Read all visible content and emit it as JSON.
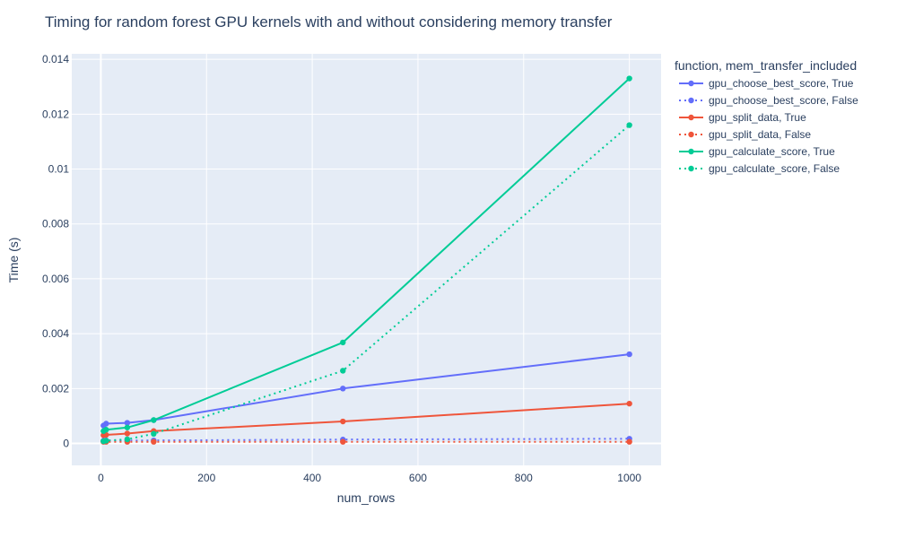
{
  "chart_data": {
    "type": "line",
    "title": "Timing for random forest GPU kernels with and without considering memory transfer",
    "xlabel": "num_rows",
    "ylabel": "Time (s)",
    "xlim": [
      -55,
      1060
    ],
    "ylim": [
      -0.0008,
      0.0142
    ],
    "x_ticks": [
      0,
      200,
      400,
      600,
      800,
      1000
    ],
    "x_tick_labels": [
      "0",
      "200",
      "400",
      "600",
      "800",
      "1000"
    ],
    "y_ticks": [
      0,
      0.002,
      0.004,
      0.006,
      0.008,
      0.01,
      0.012,
      0.014
    ],
    "y_tick_labels": [
      "0",
      "0.002",
      "0.004",
      "0.006",
      "0.008",
      "0.01",
      "0.012",
      "0.014"
    ],
    "grid": true,
    "legend_title": "function, mem_transfer_included",
    "legend_position": "right",
    "x": [
      5,
      10,
      50,
      100,
      458,
      1000
    ],
    "series": [
      {
        "name": "gpu_choose_best_score, True",
        "color": "#636efa",
        "dash": "solid",
        "values": [
          0.00065,
          0.00072,
          0.00075,
          0.00085,
          0.002,
          0.00325
        ]
      },
      {
        "name": "gpu_choose_best_score, False",
        "color": "#636efa",
        "dash": "dot",
        "values": [
          0.0001,
          0.00011,
          0.00011,
          0.00011,
          0.00014,
          0.00017
        ]
      },
      {
        "name": "gpu_split_data, True",
        "color": "#ef553b",
        "dash": "solid",
        "values": [
          0.0003,
          0.00031,
          0.00036,
          0.00045,
          0.0008,
          0.00145
        ]
      },
      {
        "name": "gpu_split_data, False",
        "color": "#ef553b",
        "dash": "dot",
        "values": [
          6e-05,
          6e-05,
          6e-05,
          6e-05,
          6e-05,
          6e-05
        ]
      },
      {
        "name": "gpu_calculate_score, True",
        "color": "#00cc96",
        "dash": "solid",
        "values": [
          0.00045,
          0.0005,
          0.00058,
          0.00085,
          0.00368,
          0.0133
        ]
      },
      {
        "name": "gpu_calculate_score, False",
        "color": "#00cc96",
        "dash": "dot",
        "values": [
          8e-05,
          0.0001,
          0.00015,
          0.00035,
          0.00265,
          0.0116
        ]
      }
    ]
  }
}
